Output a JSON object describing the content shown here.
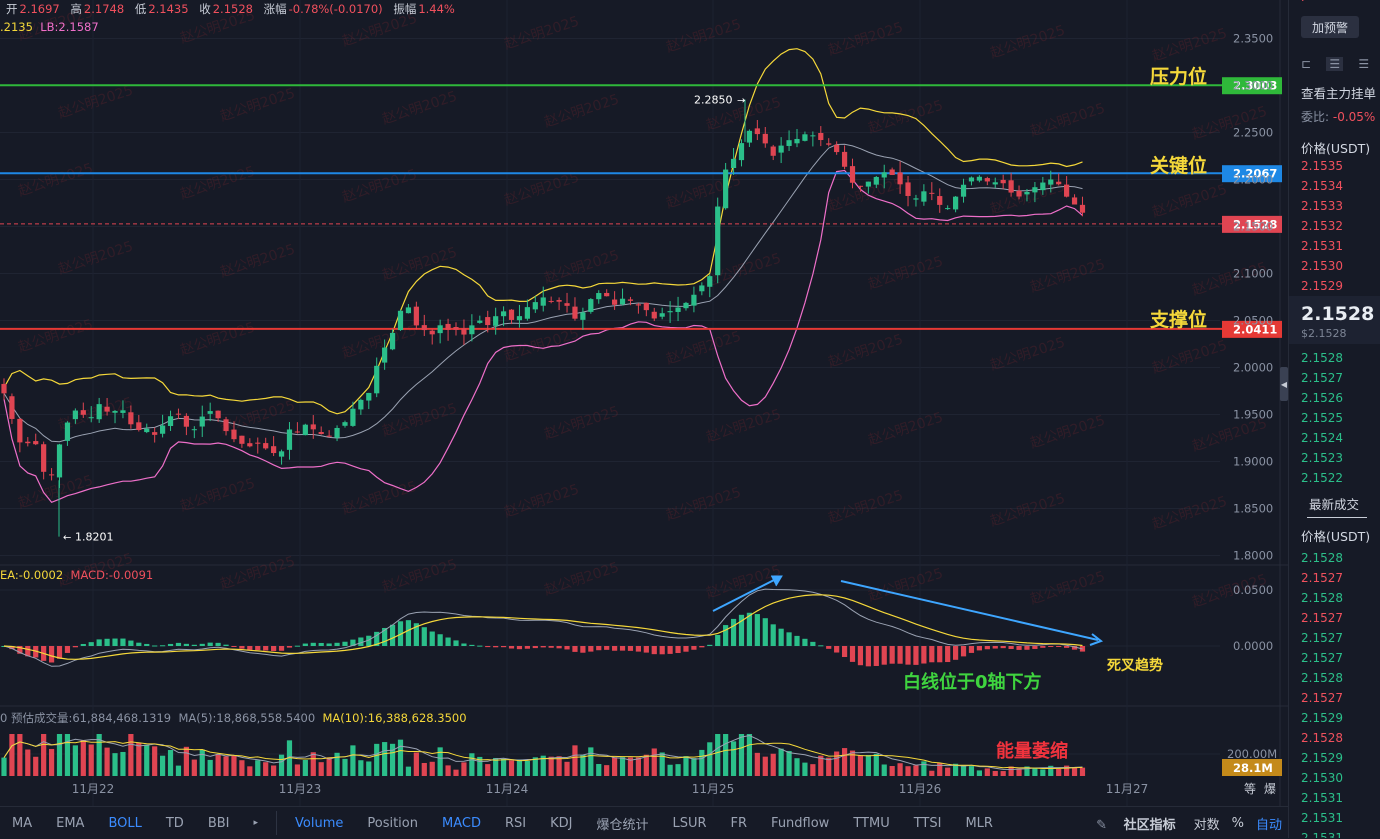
{
  "info_bar": {
    "open_label": "开",
    "open": "2.1697",
    "high_label": "高",
    "high": "2.1748",
    "low_label": "低",
    "low": "2.1435",
    "close_label": "收",
    "close": "2.1528",
    "change_label": "涨幅",
    "change": "-0.78%(-0.0170)",
    "amp_label": "振幅",
    "amp": "1.44%"
  },
  "boll_info": {
    "mb": ".2135",
    "lb": "LB:2.1587"
  },
  "macd_info": {
    "dea": "EA:-0.0002",
    "macd": "MACD:-0.0091"
  },
  "vol_info": {
    "est": "0  预估成交量:61,884,468.1319",
    "ma5": "MA(5):18,868,558.5400",
    "ma10": "MA(10):16,388,628.3500"
  },
  "annotations": {
    "resistance": "压力位",
    "key": "关键位",
    "support": "支撑位",
    "dead_cross": "死叉趋势",
    "white_line": "白线位于0轴下方",
    "volume_shrink": "能量萎缩"
  },
  "watermark": "赵公明2025",
  "chart_data": {
    "type": "candlestick",
    "x_ticks": [
      "11月22",
      "11月23",
      "11月24",
      "11月25",
      "11月26",
      "11月27"
    ],
    "y_ticks": [
      "2.3500",
      "2.3000",
      "2.2500",
      "2.2000",
      "2.1500",
      "2.1000",
      "2.0500",
      "2.0000",
      "1.9500",
      "1.9000",
      "1.8500",
      "1.8000"
    ],
    "ylim": [
      1.8,
      2.35
    ],
    "levels": [
      {
        "name": "压力位",
        "value": 2.3003,
        "label": "2.3003",
        "color": "#2fb83a"
      },
      {
        "name": "关键位",
        "value": 2.2067,
        "label": "2.2067",
        "color": "#1e88e5"
      },
      {
        "name": "支撑位",
        "value": 2.0411,
        "label": "2.0411",
        "color": "#e53935"
      }
    ],
    "current_price": {
      "value": 2.1528,
      "label": "2.1528"
    },
    "high_marker": {
      "value": 2.285,
      "label": "2.2850"
    },
    "low_marker": {
      "value": 1.8201,
      "label": "1.8201"
    },
    "close_path": [
      [
        0,
        1.985
      ],
      [
        8,
        1.96
      ],
      [
        16,
        1.93
      ],
      [
        24,
        1.91
      ],
      [
        32,
        1.93
      ],
      [
        40,
        1.905
      ],
      [
        48,
        1.87
      ],
      [
        56,
        1.905
      ],
      [
        64,
        1.935
      ],
      [
        72,
        1.95
      ],
      [
        80,
        1.96
      ],
      [
        88,
        1.935
      ],
      [
        96,
        1.965
      ],
      [
        104,
        1.955
      ],
      [
        112,
        1.95
      ],
      [
        120,
        1.96
      ],
      [
        128,
        1.945
      ],
      [
        136,
        1.93
      ],
      [
        144,
        1.94
      ],
      [
        152,
        1.925
      ],
      [
        160,
        1.935
      ],
      [
        168,
        1.945
      ],
      [
        176,
        1.955
      ],
      [
        184,
        1.94
      ],
      [
        192,
        1.93
      ],
      [
        200,
        1.945
      ],
      [
        208,
        1.955
      ],
      [
        216,
        1.95
      ],
      [
        224,
        1.935
      ],
      [
        232,
        1.925
      ],
      [
        240,
        1.92
      ],
      [
        248,
        1.915
      ],
      [
        256,
        1.92
      ],
      [
        264,
        1.915
      ],
      [
        272,
        1.91
      ],
      [
        280,
        1.905
      ],
      [
        288,
        1.935
      ],
      [
        296,
        1.93
      ],
      [
        304,
        1.94
      ],
      [
        312,
        1.935
      ],
      [
        320,
        1.93
      ],
      [
        328,
        1.925
      ],
      [
        336,
        1.935
      ],
      [
        344,
        1.94
      ],
      [
        352,
        1.955
      ],
      [
        360,
        1.965
      ],
      [
        368,
        1.97
      ],
      [
        376,
        2.0
      ],
      [
        384,
        2.02
      ],
      [
        392,
        2.035
      ],
      [
        400,
        2.06
      ],
      [
        408,
        2.065
      ],
      [
        416,
        2.045
      ],
      [
        424,
        2.04
      ],
      [
        432,
        2.035
      ],
      [
        440,
        2.045
      ],
      [
        448,
        2.04
      ],
      [
        456,
        2.04
      ],
      [
        464,
        2.035
      ],
      [
        472,
        2.045
      ],
      [
        480,
        2.05
      ],
      [
        488,
        2.045
      ],
      [
        496,
        2.055
      ],
      [
        504,
        2.06
      ],
      [
        512,
        2.05
      ],
      [
        520,
        2.055
      ],
      [
        528,
        2.065
      ],
      [
        536,
        2.07
      ],
      [
        544,
        2.075
      ],
      [
        552,
        2.07
      ],
      [
        560,
        2.07
      ],
      [
        568,
        2.065
      ],
      [
        576,
        2.05
      ],
      [
        584,
        2.06
      ],
      [
        592,
        2.075
      ],
      [
        600,
        2.08
      ],
      [
        608,
        2.075
      ],
      [
        616,
        2.065
      ],
      [
        624,
        2.075
      ],
      [
        632,
        2.07
      ],
      [
        640,
        2.065
      ],
      [
        648,
        2.06
      ],
      [
        656,
        2.05
      ],
      [
        664,
        2.06
      ],
      [
        672,
        2.06
      ],
      [
        680,
        2.065
      ],
      [
        688,
        2.07
      ],
      [
        696,
        2.08
      ],
      [
        704,
        2.09
      ],
      [
        712,
        2.1
      ],
      [
        720,
        2.2
      ],
      [
        728,
        2.215
      ],
      [
        736,
        2.225
      ],
      [
        744,
        2.245
      ],
      [
        752,
        2.255
      ],
      [
        760,
        2.245
      ],
      [
        768,
        2.235
      ],
      [
        776,
        2.22
      ],
      [
        784,
        2.245
      ],
      [
        792,
        2.24
      ],
      [
        800,
        2.245
      ],
      [
        808,
        2.25
      ],
      [
        816,
        2.245
      ],
      [
        824,
        2.24
      ],
      [
        832,
        2.235
      ],
      [
        840,
        2.225
      ],
      [
        848,
        2.205
      ],
      [
        856,
        2.19
      ],
      [
        864,
        2.195
      ],
      [
        872,
        2.2
      ],
      [
        880,
        2.205
      ],
      [
        888,
        2.21
      ],
      [
        896,
        2.2
      ],
      [
        904,
        2.19
      ],
      [
        912,
        2.175
      ],
      [
        920,
        2.185
      ],
      [
        928,
        2.19
      ],
      [
        936,
        2.18
      ],
      [
        944,
        2.165
      ],
      [
        952,
        2.175
      ],
      [
        960,
        2.19
      ],
      [
        968,
        2.2
      ],
      [
        976,
        2.205
      ],
      [
        984,
        2.2
      ],
      [
        992,
        2.195
      ],
      [
        1000,
        2.2
      ],
      [
        1008,
        2.19
      ],
      [
        1016,
        2.18
      ],
      [
        1024,
        2.185
      ],
      [
        1032,
        2.19
      ],
      [
        1040,
        2.195
      ],
      [
        1048,
        2.2
      ],
      [
        1056,
        2.2
      ],
      [
        1064,
        2.185
      ],
      [
        1072,
        2.175
      ],
      [
        1080,
        2.17
      ],
      [
        1088,
        2.1528
      ]
    ],
    "macd_ylim": [
      -0.065,
      0.075
    ],
    "macd_ticks": [
      "0.0500",
      "0.0000"
    ],
    "volume_ticks": [
      "200.00M"
    ],
    "volume_current": "28.1M"
  },
  "bottom_tabs": [
    "MA",
    "EMA",
    "BOLL",
    "TD",
    "BBI",
    "Volume",
    "Position",
    "MACD",
    "RSI",
    "KDJ",
    "爆仓统计",
    "LSUR",
    "FR",
    "Fundflow",
    "TTMU",
    "TTSI",
    "MLR"
  ],
  "bottom_right": {
    "community": "社区指标",
    "pair": "对数",
    "pct": "%",
    "auto": "自动",
    "eq": "等",
    "burst": "爆"
  },
  "side": {
    "alert": "加预警",
    "view_main": "查看主力挂单",
    "ratio_label": "委比:",
    "ratio": "-0.05%",
    "price_hdr": "价格(USDT)",
    "asks": [
      "2.1535",
      "2.1534",
      "2.1533",
      "2.1532",
      "2.1531",
      "2.1530",
      "2.1529"
    ],
    "last": "2.1528",
    "last_sub": "$2.1528",
    "bids": [
      "2.1528",
      "2.1527",
      "2.1526",
      "2.1525",
      "2.1524",
      "2.1523",
      "2.1522"
    ],
    "trades_hdr": "最新成交",
    "trades_price_hdr": "价格(USDT)",
    "trades": [
      "2.1528",
      "2.1527",
      "2.1528",
      "2.1527",
      "2.1527",
      "2.1527",
      "2.1528",
      "2.1527",
      "2.1529",
      "2.1528",
      "2.1529",
      "2.1530",
      "2.1531",
      "2.1531",
      "2.1531"
    ]
  }
}
